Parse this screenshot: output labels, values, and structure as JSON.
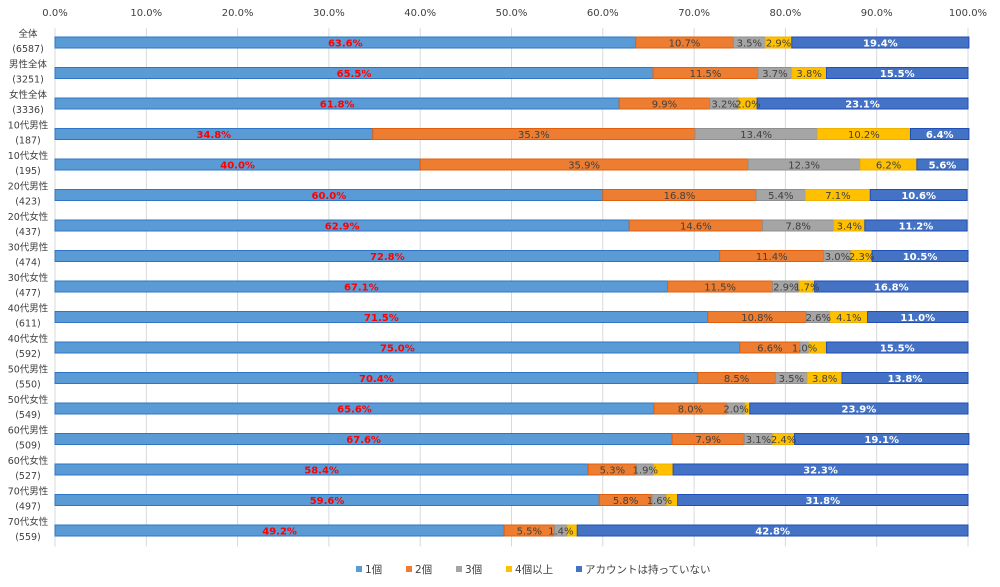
{
  "chart_data": {
    "type": "bar",
    "orientation": "horizontal",
    "stacked": "100%",
    "title": "",
    "xlabel": "",
    "ylabel": "",
    "xlim": [
      0,
      100
    ],
    "x_ticks": [
      "0.0%",
      "10.0%",
      "20.0%",
      "30.0%",
      "40.0%",
      "50.0%",
      "60.0%",
      "70.0%",
      "80.0%",
      "90.0%",
      "100.0%"
    ],
    "grid": true,
    "x_axis_position": "top",
    "legend_position": "bottom",
    "categories": [
      {
        "name": "全体",
        "n": "(6587)"
      },
      {
        "name": "男性全体",
        "n": "(3251)"
      },
      {
        "name": "女性全体",
        "n": "(3336)"
      },
      {
        "name": "10代男性",
        "n": "(187)"
      },
      {
        "name": "10代女性",
        "n": "(195)"
      },
      {
        "name": "20代男性",
        "n": "(423)"
      },
      {
        "name": "20代女性",
        "n": "(437)"
      },
      {
        "name": "30代男性",
        "n": "(474)"
      },
      {
        "name": "30代女性",
        "n": "(477)"
      },
      {
        "name": "40代男性",
        "n": "(611)"
      },
      {
        "name": "40代女性",
        "n": "(592)"
      },
      {
        "name": "50代男性",
        "n": "(550)"
      },
      {
        "name": "50代女性",
        "n": "(549)"
      },
      {
        "name": "60代男性",
        "n": "(509)"
      },
      {
        "name": "60代女性",
        "n": "(527)"
      },
      {
        "name": "70代男性",
        "n": "(497)"
      },
      {
        "name": "70代女性",
        "n": "(559)"
      }
    ],
    "series": [
      {
        "name": "1個",
        "color": "#5b9bd5",
        "border": "#2e75c6",
        "label_style": "red",
        "values": [
          63.6,
          65.5,
          61.8,
          34.8,
          40.0,
          60.0,
          62.9,
          72.8,
          67.1,
          71.5,
          75.0,
          70.4,
          65.6,
          67.6,
          58.4,
          59.6,
          49.2
        ],
        "labels_shown": [
          true,
          true,
          true,
          true,
          true,
          true,
          true,
          true,
          true,
          true,
          true,
          true,
          true,
          true,
          true,
          true,
          true
        ]
      },
      {
        "name": "2個",
        "color": "#ed7d31",
        "border": "#e0600f",
        "label_style": "dark",
        "values": [
          10.7,
          11.5,
          9.9,
          35.3,
          35.9,
          16.8,
          14.6,
          11.4,
          11.5,
          10.8,
          6.6,
          8.5,
          8.0,
          7.9,
          5.3,
          5.8,
          5.5
        ],
        "labels_shown": [
          true,
          true,
          true,
          true,
          true,
          true,
          true,
          true,
          true,
          true,
          true,
          true,
          true,
          true,
          true,
          true,
          true
        ]
      },
      {
        "name": "3個",
        "color": "#a5a5a5",
        "border": "#8f8f8f",
        "label_style": "dark",
        "values": [
          3.5,
          3.7,
          3.2,
          13.4,
          12.3,
          5.4,
          7.8,
          3.0,
          2.9,
          2.6,
          1.0,
          3.5,
          2.0,
          3.1,
          1.9,
          1.6,
          1.4
        ],
        "labels_shown": [
          true,
          true,
          true,
          true,
          true,
          true,
          true,
          true,
          true,
          true,
          true,
          true,
          true,
          true,
          true,
          true,
          true
        ]
      },
      {
        "name": "4個以上",
        "color": "#ffc000",
        "border": "#f0b000",
        "label_style": "dark",
        "values": [
          2.9,
          3.8,
          2.0,
          10.2,
          6.2,
          7.1,
          3.4,
          2.3,
          1.7,
          4.1,
          1.9,
          3.8,
          0.5,
          2.4,
          2.1,
          1.2,
          1.1
        ],
        "labels_shown": [
          true,
          true,
          true,
          true,
          true,
          true,
          true,
          true,
          true,
          true,
          false,
          true,
          false,
          true,
          false,
          false,
          false
        ]
      },
      {
        "name": "アカウントは持っていない",
        "color": "#4472c4",
        "border": "#1f4eb4",
        "label_style": "white",
        "values": [
          19.4,
          15.5,
          23.1,
          6.4,
          5.6,
          10.6,
          11.2,
          10.5,
          16.8,
          11.0,
          15.5,
          13.8,
          23.9,
          19.1,
          32.3,
          31.8,
          42.8
        ],
        "labels_shown": [
          true,
          true,
          true,
          true,
          true,
          true,
          true,
          true,
          true,
          true,
          true,
          true,
          true,
          true,
          true,
          true,
          true
        ]
      }
    ]
  }
}
